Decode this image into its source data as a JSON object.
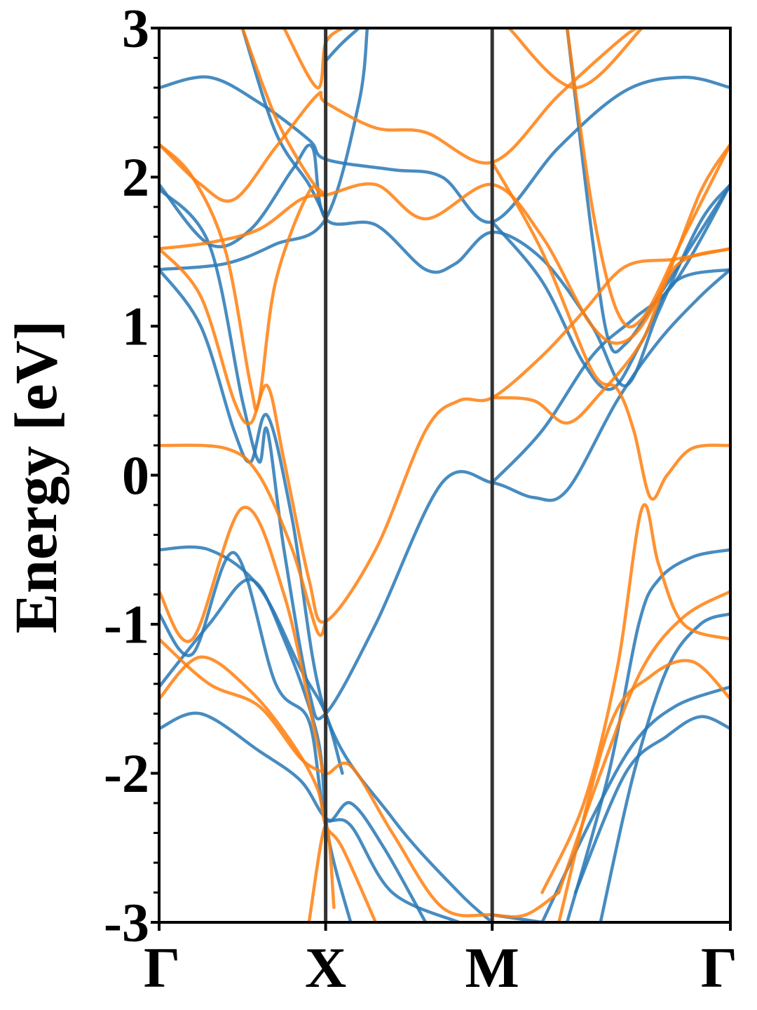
{
  "chart_data": {
    "type": "line",
    "title": "",
    "xlabel": "",
    "ylabel": "Energy [eV]",
    "ylim": [
      -3,
      3
    ],
    "grid": false,
    "legend": "none",
    "kpath": {
      "labels": [
        "Γ",
        "X",
        "M",
        "Γ"
      ],
      "positions": [
        0,
        1,
        2,
        3.43
      ]
    },
    "yticks": [
      {
        "value": -3,
        "label": "-3"
      },
      {
        "value": -2,
        "label": "-2"
      },
      {
        "value": -1,
        "label": "-1"
      },
      {
        "value": 0,
        "label": "0"
      },
      {
        "value": 1,
        "label": "1"
      },
      {
        "value": 2,
        "label": "2"
      },
      {
        "value": 3,
        "label": "3"
      }
    ],
    "colors": {
      "blue": "#2878b5",
      "orange": "#ff7f0e",
      "kline": "#333333"
    },
    "series": [
      {
        "color": "blue",
        "points": [
          [
            0,
            2.6
          ],
          [
            0.3,
            2.67
          ],
          [
            0.6,
            2.5
          ],
          [
            0.9,
            2.25
          ],
          [
            1,
            2.12
          ],
          [
            1.4,
            2.05
          ],
          [
            1.7,
            2.0
          ],
          [
            2,
            1.7
          ],
          [
            2.4,
            2.2
          ],
          [
            2.8,
            2.58
          ],
          [
            3.15,
            2.67
          ],
          [
            3.43,
            2.6
          ]
        ]
      },
      {
        "color": "blue",
        "points": [
          [
            0,
            1.95
          ],
          [
            0.3,
            1.55
          ],
          [
            0.55,
            1.65
          ],
          [
            0.8,
            2.05
          ],
          [
            0.92,
            2.2
          ],
          [
            1,
            1.72
          ],
          [
            1.3,
            1.68
          ],
          [
            1.6,
            1.38
          ],
          [
            1.78,
            1.42
          ],
          [
            2,
            1.63
          ],
          [
            2.3,
            1.45
          ],
          [
            2.6,
            1.0
          ],
          [
            2.8,
            0.6
          ],
          [
            3.0,
            1.1
          ],
          [
            3.25,
            1.7
          ],
          [
            3.43,
            1.95
          ]
        ]
      },
      {
        "color": "blue",
        "points": [
          [
            0,
            1.38
          ],
          [
            0.4,
            1.42
          ],
          [
            0.7,
            1.55
          ],
          [
            1,
            1.72
          ],
          [
            1.2,
            2.5
          ],
          [
            1.25,
            3.0
          ]
        ]
      },
      {
        "color": "blue",
        "points": [
          [
            0,
            1.92
          ],
          [
            0.3,
            1.55
          ],
          [
            0.5,
            0.5
          ],
          [
            0.6,
            0.09
          ],
          [
            0.65,
            0.3
          ],
          [
            0.75,
            -0.5
          ],
          [
            0.9,
            -1.45
          ],
          [
            1,
            -1.6
          ],
          [
            1.3,
            -1.0
          ],
          [
            1.7,
            -0.05
          ],
          [
            2,
            -0.05
          ],
          [
            2.25,
            -0.15
          ],
          [
            2.45,
            -0.1
          ],
          [
            2.75,
            0.5
          ],
          [
            3.0,
            0.9
          ],
          [
            3.25,
            1.2
          ],
          [
            3.43,
            1.38
          ]
        ]
      },
      {
        "color": "blue",
        "points": [
          [
            0,
            1.38
          ],
          [
            0.25,
            1.0
          ],
          [
            0.45,
            0.3
          ],
          [
            0.55,
            0.09
          ],
          [
            0.65,
            0.4
          ],
          [
            0.8,
            -0.3
          ],
          [
            1,
            -1.6
          ],
          [
            1.4,
            -2.3
          ],
          [
            1.8,
            -2.8
          ],
          [
            2,
            -3.0
          ]
        ]
      },
      {
        "color": "blue",
        "points": [
          [
            0,
            -0.5
          ],
          [
            0.3,
            -0.5
          ],
          [
            0.6,
            -0.75
          ],
          [
            0.85,
            -1.3
          ],
          [
            1,
            -1.6
          ],
          [
            1.1,
            -2.0
          ]
        ]
      },
      {
        "color": "blue",
        "points": [
          [
            0,
            -0.93
          ],
          [
            0.2,
            -1.2
          ],
          [
            0.45,
            -0.52
          ],
          [
            0.7,
            -1.4
          ],
          [
            0.9,
            -1.65
          ],
          [
            1,
            -2.3
          ],
          [
            1.15,
            -2.2
          ],
          [
            1.35,
            -2.5
          ],
          [
            1.6,
            -3.0
          ]
        ]
      },
      {
        "color": "blue",
        "points": [
          [
            0,
            -1.42
          ],
          [
            0.3,
            -1.0
          ],
          [
            0.55,
            -0.7
          ],
          [
            0.75,
            -1.1
          ],
          [
            0.95,
            -1.75
          ],
          [
            1,
            -2.3
          ],
          [
            1.05,
            -2.6
          ],
          [
            1.15,
            -3.0
          ]
        ]
      },
      {
        "color": "blue",
        "points": [
          [
            0,
            -1.7
          ],
          [
            0.25,
            -1.6
          ],
          [
            0.6,
            -1.85
          ],
          [
            0.85,
            -2.05
          ],
          [
            1,
            -2.3
          ],
          [
            1.15,
            -2.35
          ],
          [
            1.4,
            -2.8
          ],
          [
            1.8,
            -3.0
          ]
        ]
      },
      {
        "color": "blue",
        "points": [
          [
            0.5,
            3.0
          ],
          [
            0.7,
            2.3
          ],
          [
            0.9,
            1.95
          ],
          [
            1,
            1.72
          ]
        ]
      },
      {
        "color": "blue",
        "points": [
          [
            1,
            2.78
          ],
          [
            1.1,
            2.9
          ],
          [
            1.2,
            3.0
          ]
        ]
      },
      {
        "color": "blue",
        "points": [
          [
            2,
            1.7
          ],
          [
            2.3,
            1.3
          ],
          [
            2.55,
            0.75
          ],
          [
            2.72,
            0.58
          ],
          [
            2.9,
            0.9
          ],
          [
            3.1,
            1.3
          ],
          [
            3.43,
            1.38
          ]
        ]
      },
      {
        "color": "blue",
        "points": [
          [
            2,
            -0.05
          ],
          [
            2.3,
            0.3
          ],
          [
            2.6,
            0.8
          ],
          [
            2.85,
            1.05
          ],
          [
            3.1,
            1.3
          ],
          [
            3.43,
            1.95
          ]
        ]
      },
      {
        "color": "blue",
        "points": [
          [
            2,
            -2.95
          ],
          [
            2.3,
            -3.0
          ]
        ]
      },
      {
        "color": "blue",
        "points": [
          [
            2.65,
            -3.0
          ],
          [
            2.85,
            -2.0
          ],
          [
            3.05,
            -1.3
          ],
          [
            3.25,
            -1.0
          ],
          [
            3.43,
            -0.93
          ]
        ]
      },
      {
        "color": "blue",
        "points": [
          [
            2.45,
            -3.0
          ],
          [
            2.7,
            -2.0
          ],
          [
            2.88,
            -1.0
          ],
          [
            3.0,
            -0.7
          ],
          [
            3.2,
            -0.55
          ],
          [
            3.43,
            -0.5
          ]
        ]
      },
      {
        "color": "blue",
        "points": [
          [
            2.3,
            -3.0
          ],
          [
            2.6,
            -2.3
          ],
          [
            2.85,
            -1.8
          ],
          [
            3.1,
            -1.55
          ],
          [
            3.43,
            -1.42
          ]
        ]
      },
      {
        "color": "blue",
        "points": [
          [
            2.5,
            -2.8
          ],
          [
            2.8,
            -2.0
          ],
          [
            3.05,
            -1.75
          ],
          [
            3.25,
            -1.62
          ],
          [
            3.43,
            -1.7
          ]
        ]
      },
      {
        "color": "blue",
        "points": [
          [
            2.45,
            3.0
          ],
          [
            2.6,
            1.6
          ],
          [
            2.7,
            0.9
          ],
          [
            2.8,
            0.88
          ],
          [
            3.0,
            1.2
          ],
          [
            3.43,
            1.95
          ]
        ]
      },
      {
        "color": "orange",
        "points": [
          [
            0,
            2.22
          ],
          [
            0.25,
            1.95
          ],
          [
            0.45,
            1.85
          ],
          [
            0.7,
            2.2
          ],
          [
            0.95,
            2.55
          ],
          [
            1,
            2.5
          ],
          [
            1.3,
            2.33
          ],
          [
            1.6,
            2.3
          ],
          [
            2,
            2.1
          ],
          [
            2.4,
            2.55
          ],
          [
            2.8,
            2.95
          ],
          [
            2.9,
            3.0
          ]
        ]
      },
      {
        "color": "orange",
        "points": [
          [
            0,
            2.22
          ],
          [
            0.2,
            2.0
          ],
          [
            0.4,
            1.5
          ],
          [
            0.55,
            0.6
          ],
          [
            0.6,
            0.5
          ],
          [
            0.7,
            1.3
          ],
          [
            0.9,
            1.9
          ],
          [
            1,
            1.88
          ],
          [
            1.3,
            1.95
          ],
          [
            1.6,
            1.72
          ],
          [
            2,
            1.95
          ],
          [
            2.3,
            1.6
          ],
          [
            2.6,
            1.0
          ],
          [
            2.8,
            0.9
          ],
          [
            3.0,
            1.2
          ],
          [
            3.25,
            1.9
          ],
          [
            3.43,
            2.22
          ]
        ]
      },
      {
        "color": "orange",
        "points": [
          [
            0,
            1.52
          ],
          [
            0.3,
            1.56
          ],
          [
            0.6,
            1.65
          ],
          [
            0.85,
            1.85
          ],
          [
            1,
            1.88
          ]
        ]
      },
      {
        "color": "orange",
        "points": [
          [
            0,
            1.52
          ],
          [
            0.25,
            1.2
          ],
          [
            0.45,
            0.5
          ],
          [
            0.55,
            0.35
          ],
          [
            0.65,
            0.6
          ],
          [
            0.75,
            0.1
          ],
          [
            0.9,
            -0.7
          ],
          [
            1,
            -0.98
          ],
          [
            1.3,
            -0.5
          ],
          [
            1.6,
            0.3
          ],
          [
            1.8,
            0.5
          ],
          [
            2,
            0.52
          ],
          [
            2.3,
            0.8
          ],
          [
            2.55,
            1.1
          ],
          [
            2.8,
            1.4
          ],
          [
            3.1,
            1.45
          ],
          [
            3.43,
            1.52
          ]
        ]
      },
      {
        "color": "orange",
        "points": [
          [
            0,
            0.2
          ],
          [
            0.4,
            0.18
          ],
          [
            0.6,
            0.0
          ],
          [
            0.8,
            -0.5
          ],
          [
            0.95,
            -1.05
          ],
          [
            1,
            -0.98
          ]
        ]
      },
      {
        "color": "orange",
        "points": [
          [
            0,
            -0.78
          ],
          [
            0.2,
            -1.1
          ],
          [
            0.5,
            -0.22
          ],
          [
            0.75,
            -0.8
          ],
          [
            0.95,
            -1.8
          ],
          [
            1,
            -2.0
          ],
          [
            1.15,
            -1.95
          ],
          [
            1.4,
            -2.4
          ],
          [
            1.7,
            -2.9
          ],
          [
            2,
            -2.95
          ],
          [
            2.2,
            -2.95
          ],
          [
            2.4,
            -2.8
          ]
        ]
      },
      {
        "color": "orange",
        "points": [
          [
            0,
            -1.1
          ],
          [
            0.3,
            -1.4
          ],
          [
            0.6,
            -1.55
          ],
          [
            0.85,
            -1.9
          ],
          [
            1,
            -2.0
          ]
        ]
      },
      {
        "color": "orange",
        "points": [
          [
            0,
            -1.5
          ],
          [
            0.25,
            -1.22
          ],
          [
            0.55,
            -1.45
          ],
          [
            0.8,
            -1.8
          ],
          [
            0.95,
            -2.1
          ],
          [
            1,
            -2.35
          ],
          [
            1.1,
            -2.5
          ],
          [
            1.3,
            -3.0
          ]
        ]
      },
      {
        "color": "orange",
        "points": [
          [
            0.5,
            3.0
          ],
          [
            0.7,
            2.4
          ],
          [
            0.9,
            2.0
          ],
          [
            1,
            1.88
          ]
        ]
      },
      {
        "color": "orange",
        "points": [
          [
            0.75,
            3.0
          ],
          [
            0.95,
            2.6
          ],
          [
            1,
            2.9
          ],
          [
            1.1,
            3.0
          ]
        ]
      },
      {
        "color": "orange",
        "points": [
          [
            0.9,
            -3.0
          ],
          [
            1,
            -2.35
          ],
          [
            1.05,
            -2.9
          ]
        ]
      },
      {
        "color": "orange",
        "points": [
          [
            2,
            2.1
          ],
          [
            2.3,
            1.5
          ],
          [
            2.6,
            0.7
          ],
          [
            2.75,
            0.58
          ],
          [
            2.85,
            0.3
          ],
          [
            2.95,
            -0.15
          ],
          [
            3.05,
            0.0
          ],
          [
            3.2,
            0.18
          ],
          [
            3.43,
            0.2
          ]
        ]
      },
      {
        "color": "orange",
        "points": [
          [
            2,
            0.52
          ],
          [
            2.25,
            0.5
          ],
          [
            2.45,
            0.35
          ],
          [
            2.65,
            0.55
          ],
          [
            2.9,
            0.9
          ],
          [
            3.1,
            1.4
          ],
          [
            3.43,
            1.52
          ]
        ]
      },
      {
        "color": "orange",
        "points": [
          [
            2.45,
            3.0
          ],
          [
            2.6,
            1.8
          ],
          [
            2.75,
            1.1
          ],
          [
            2.9,
            1.05
          ],
          [
            3.15,
            1.6
          ],
          [
            3.43,
            2.22
          ]
        ]
      },
      {
        "color": "orange",
        "points": [
          [
            2.1,
            3.0
          ],
          [
            2.5,
            2.6
          ],
          [
            2.9,
            3.0
          ]
        ]
      },
      {
        "color": "orange",
        "points": [
          [
            2.3,
            -2.8
          ],
          [
            2.55,
            -2.2
          ],
          [
            2.75,
            -1.3
          ],
          [
            2.9,
            -0.22
          ],
          [
            3.0,
            -0.6
          ],
          [
            3.15,
            -1.0
          ],
          [
            3.43,
            -1.1
          ]
        ]
      },
      {
        "color": "orange",
        "points": [
          [
            2.4,
            -2.8
          ],
          [
            2.65,
            -2.0
          ],
          [
            2.9,
            -1.3
          ],
          [
            3.15,
            -0.95
          ],
          [
            3.43,
            -0.78
          ]
        ]
      },
      {
        "color": "orange",
        "points": [
          [
            2.4,
            -3.0
          ],
          [
            2.7,
            -1.7
          ],
          [
            2.95,
            -1.35
          ],
          [
            3.2,
            -1.25
          ],
          [
            3.43,
            -1.5
          ]
        ]
      }
    ]
  }
}
